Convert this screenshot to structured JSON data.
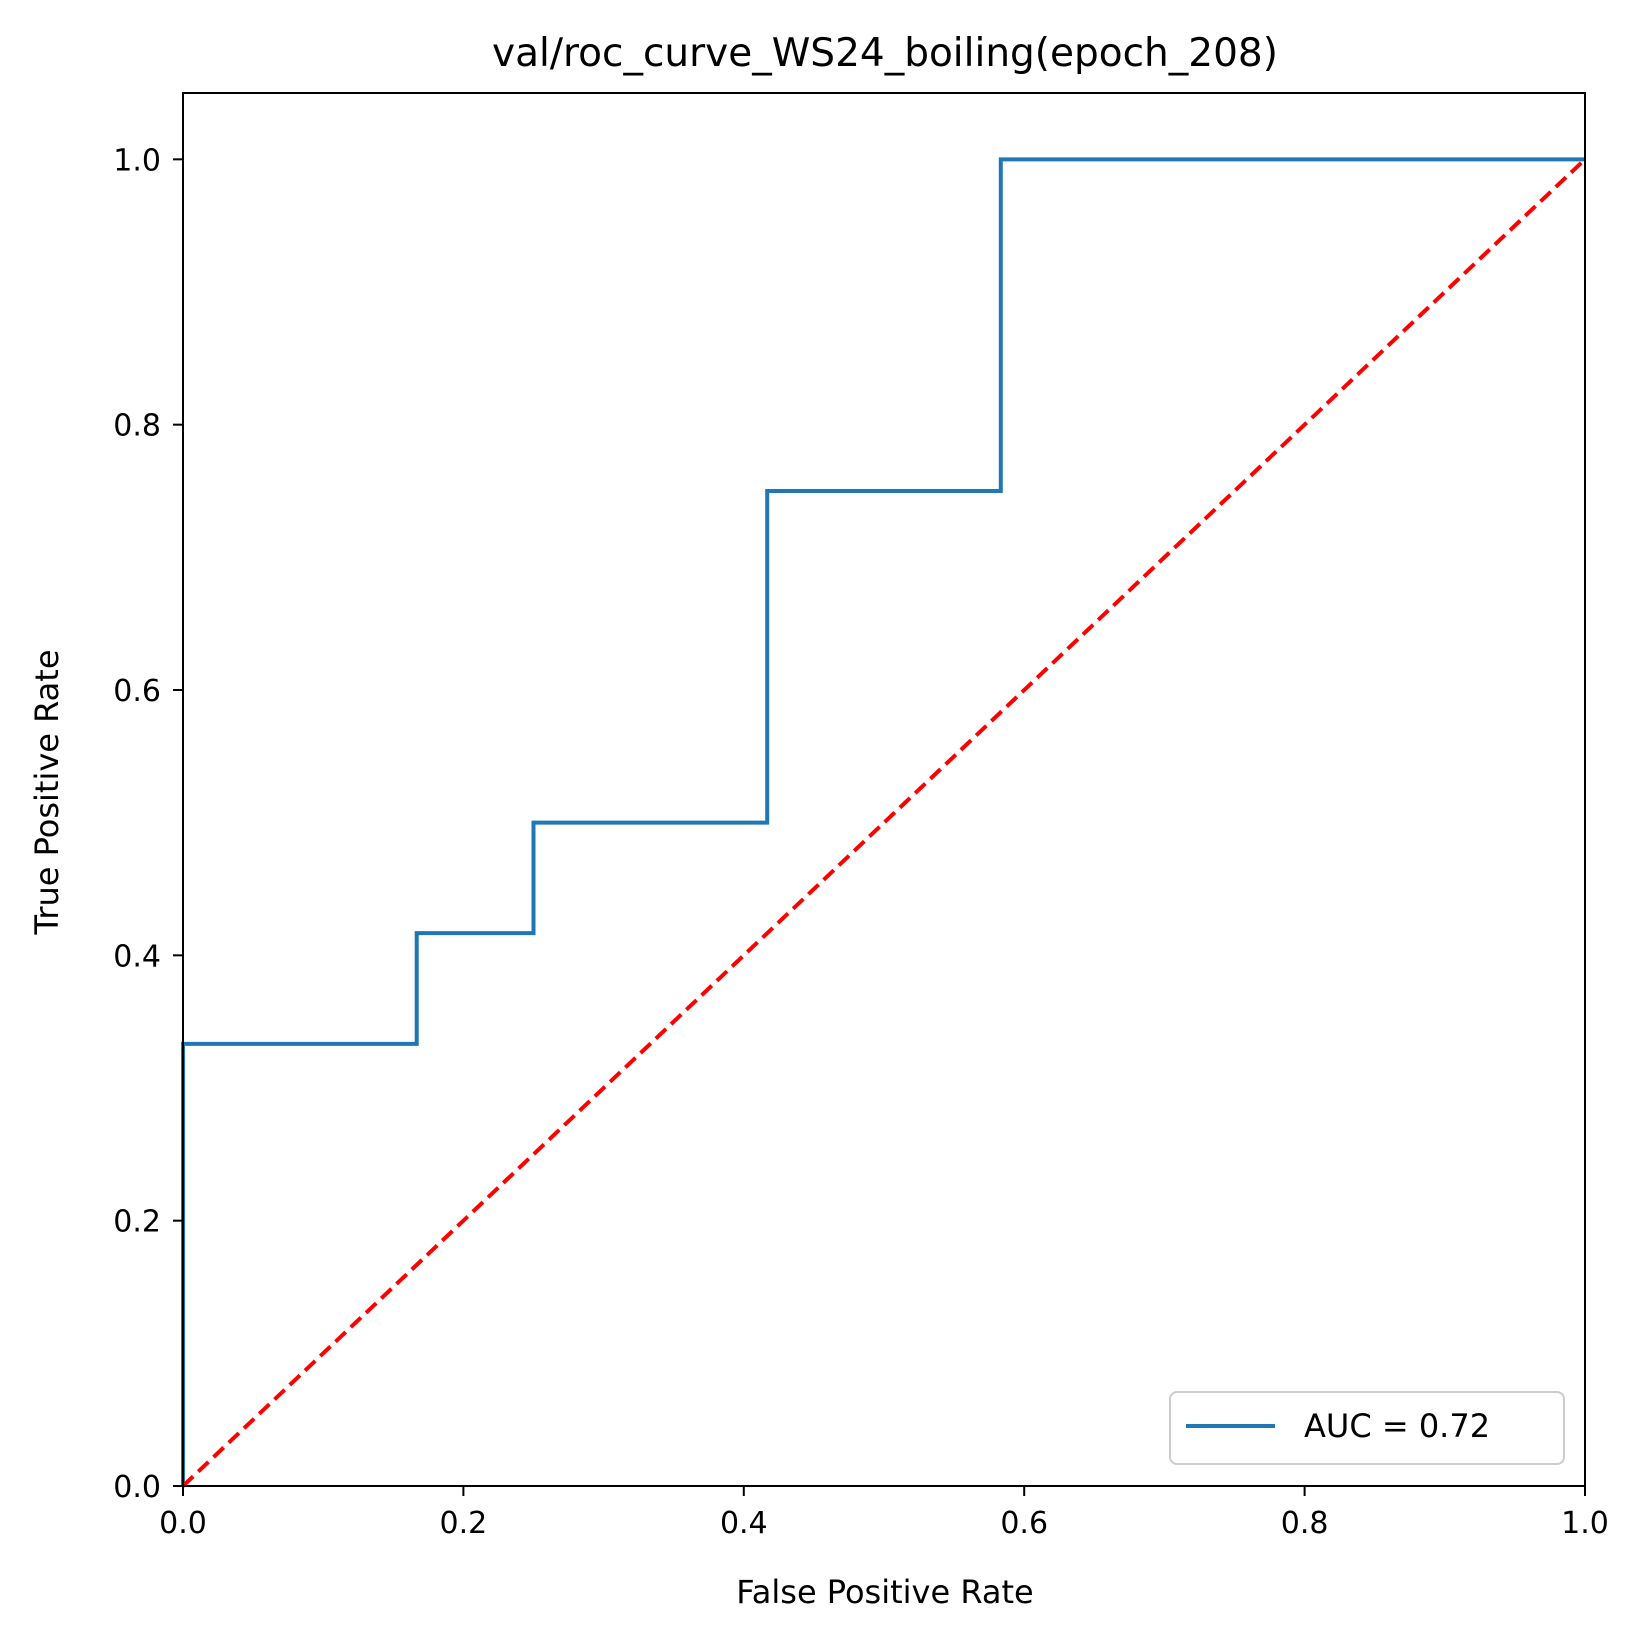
{
  "chart_data": {
    "type": "line",
    "title": "val/roc_curve_WS24_boiling(epoch_208)",
    "xlabel": "False Positive Rate",
    "ylabel": "True Positive Rate",
    "xlim": [
      0.0,
      1.0
    ],
    "ylim": [
      0.0,
      1.05
    ],
    "x_ticks": [
      0.0,
      0.2,
      0.4,
      0.6,
      0.8,
      1.0
    ],
    "x_tick_labels": [
      "0.0",
      "0.2",
      "0.4",
      "0.6",
      "0.8",
      "1.0"
    ],
    "y_ticks": [
      0.0,
      0.2,
      0.4,
      0.6,
      0.8,
      1.0
    ],
    "y_tick_labels": [
      "0.0",
      "0.2",
      "0.4",
      "0.6",
      "0.8",
      "1.0"
    ],
    "grid": false,
    "legend_position": "lower-right",
    "series": [
      {
        "name": "AUC = 0.72",
        "color": "#1f77b4",
        "style": "solid",
        "x": [
          0.0,
          0.0,
          0.1667,
          0.1667,
          0.25,
          0.25,
          0.4167,
          0.4167,
          0.5833,
          0.5833,
          1.0
        ],
        "y": [
          0.0,
          0.3333,
          0.3333,
          0.4167,
          0.4167,
          0.5,
          0.5,
          0.75,
          0.75,
          1.0,
          1.0
        ]
      },
      {
        "color": "#ff0000",
        "style": "dashed",
        "x": [
          0.0,
          1.0
        ],
        "y": [
          0.0,
          1.0
        ]
      }
    ]
  }
}
